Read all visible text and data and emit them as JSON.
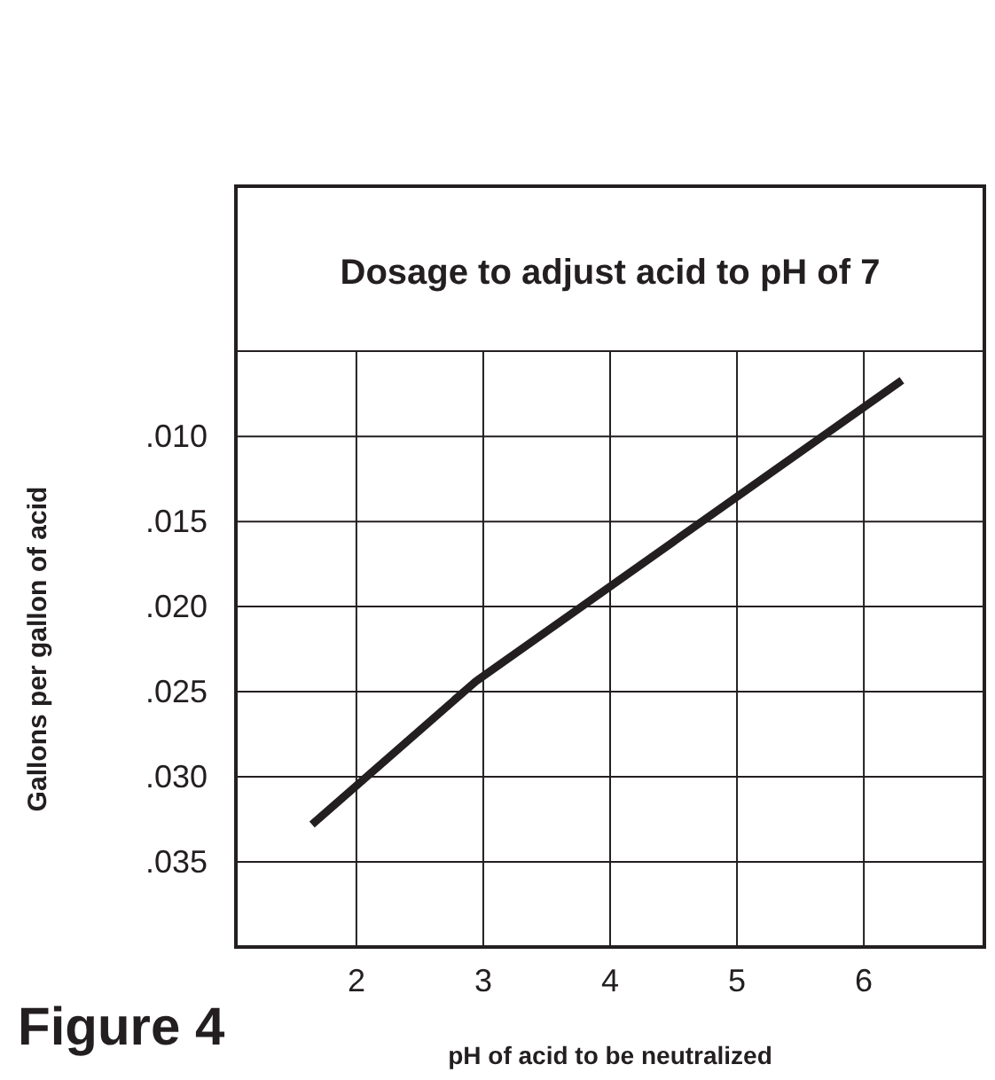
{
  "chart_data": {
    "type": "line",
    "title": "Dosage to adjust acid to pH of 7",
    "xlabel": "pH of acid to be neutralized",
    "ylabel": "Gallons per gallon of acid",
    "annotations": [
      "Figure 4"
    ],
    "x": [
      1.65,
      2.94,
      6.3
    ],
    "series": [
      {
        "color": "#231f20",
        "values": [
          0.0328,
          0.0244,
          0.0067
        ]
      }
    ],
    "xlim": [
      1.05,
      6.95
    ],
    "xticks": [
      2,
      3,
      4,
      5,
      6
    ],
    "ylim": [
      0.04,
      -0.0047
    ],
    "yticks": [
      {
        "value": 0.01,
        "label": ".010"
      },
      {
        "value": 0.015,
        "label": ".015"
      },
      {
        "value": 0.02,
        "label": ".020"
      },
      {
        "value": 0.025,
        "label": ".025"
      },
      {
        "value": 0.03,
        "label": ".030"
      },
      {
        "value": 0.035,
        "label": ".035"
      }
    ],
    "grid": true,
    "marker": "none",
    "line_style": "solid"
  }
}
